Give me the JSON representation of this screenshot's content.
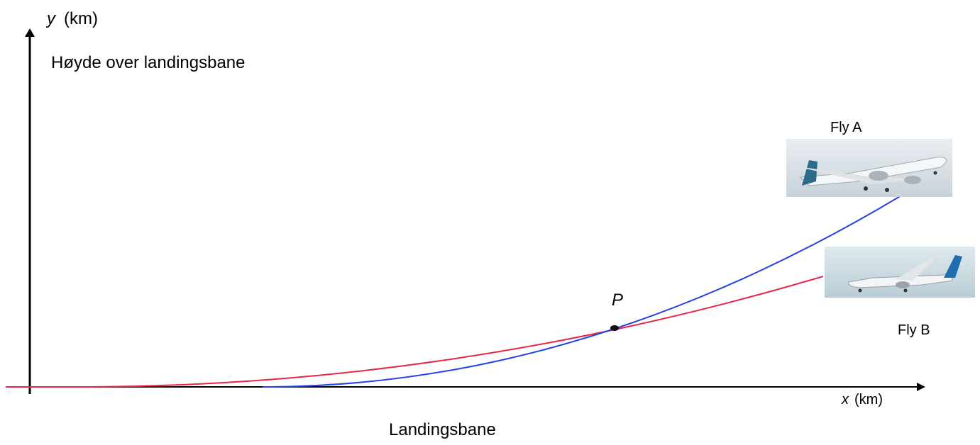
{
  "axes": {
    "y": {
      "symbol": "y",
      "unit": "(km)",
      "label": "Høyde over landingsbane"
    },
    "x": {
      "symbol": "x",
      "unit": "(km)"
    }
  },
  "curves": [
    {
      "label": "Fly A"
    },
    {
      "label": "Fly B"
    }
  ],
  "point": {
    "label": "P"
  },
  "runway": {
    "label": "Landingsbane"
  }
}
